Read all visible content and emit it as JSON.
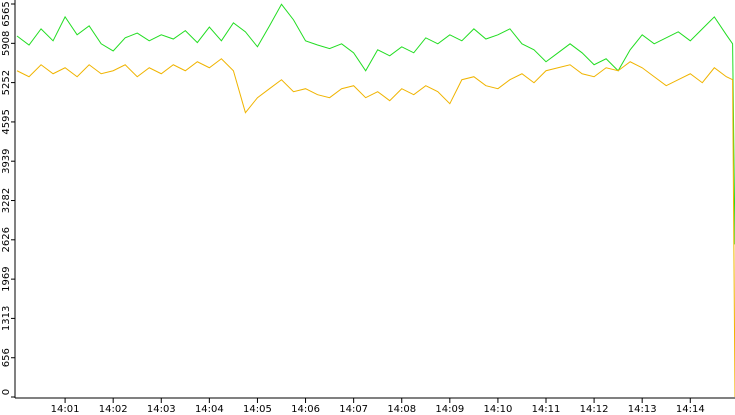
{
  "chart_data": {
    "type": "line",
    "x": [
      0,
      0.25,
      0.5,
      0.75,
      1,
      1.25,
      1.5,
      1.75,
      2,
      2.25,
      2.5,
      2.75,
      3,
      3.25,
      3.5,
      3.75,
      4,
      4.25,
      4.5,
      4.75,
      5,
      5.25,
      5.5,
      5.75,
      6,
      6.25,
      6.5,
      6.75,
      7,
      7.25,
      7.5,
      7.75,
      8,
      8.25,
      8.5,
      8.75,
      9,
      9.25,
      9.5,
      9.75,
      10,
      10.25,
      10.5,
      10.75,
      11,
      11.25,
      11.5,
      11.75,
      12,
      12.25,
      12.5,
      12.75,
      13,
      13.25,
      13.5,
      13.75,
      14,
      14.25,
      14.5,
      14.75,
      14.88,
      14.93
    ],
    "series": [
      {
        "color": "#22dd22",
        "values": [
          6030,
          5880,
          6150,
          5950,
          6350,
          6050,
          6200,
          5900,
          5780,
          6000,
          6080,
          5950,
          6050,
          5980,
          6120,
          5920,
          6180,
          5950,
          6250,
          6100,
          5850,
          6200,
          6560,
          6300,
          5950,
          5880,
          5820,
          5900,
          5750,
          5450,
          5800,
          5700,
          5850,
          5750,
          6000,
          5900,
          6050,
          5950,
          6150,
          5980,
          6050,
          6150,
          5900,
          5800,
          5600,
          5750,
          5900,
          5750,
          5550,
          5650,
          5450,
          5800,
          6050,
          5900,
          6000,
          6100,
          5950,
          6150,
          6350,
          6050,
          5900,
          2550
        ]
      },
      {
        "color": "#f0b400",
        "values": [
          5450,
          5350,
          5550,
          5400,
          5500,
          5350,
          5550,
          5400,
          5450,
          5550,
          5350,
          5500,
          5400,
          5550,
          5450,
          5600,
          5500,
          5650,
          5450,
          4750,
          5000,
          5150,
          5300,
          5100,
          5150,
          5050,
          5000,
          5150,
          5200,
          5000,
          5100,
          4950,
          5150,
          5050,
          5200,
          5100,
          4900,
          5300,
          5350,
          5200,
          5150,
          5300,
          5400,
          5250,
          5450,
          5500,
          5550,
          5400,
          5350,
          5500,
          5450,
          5600,
          5500,
          5350,
          5200,
          5300,
          5400,
          5250,
          5500,
          5350,
          5300,
          0
        ]
      }
    ],
    "xlim": [
      0,
      14.93
    ],
    "xticks": [
      {
        "value": 1,
        "label": "14:01"
      },
      {
        "value": 2,
        "label": "14:02"
      },
      {
        "value": 3,
        "label": "14:03"
      },
      {
        "value": 4,
        "label": "14:04"
      },
      {
        "value": 5,
        "label": "14:05"
      },
      {
        "value": 6,
        "label": "14:06"
      },
      {
        "value": 7,
        "label": "14:07"
      },
      {
        "value": 8,
        "label": "14:08"
      },
      {
        "value": 9,
        "label": "14:09"
      },
      {
        "value": 10,
        "label": "14:10"
      },
      {
        "value": 11,
        "label": "14:11"
      },
      {
        "value": 12,
        "label": "14:12"
      },
      {
        "value": 13,
        "label": "14:13"
      },
      {
        "value": 14,
        "label": "14:14"
      }
    ],
    "ylim": [
      0,
      6565
    ],
    "yticks": [
      0,
      656,
      1313,
      1969,
      2626,
      3282,
      3939,
      4595,
      5252,
      5908,
      6565
    ]
  }
}
